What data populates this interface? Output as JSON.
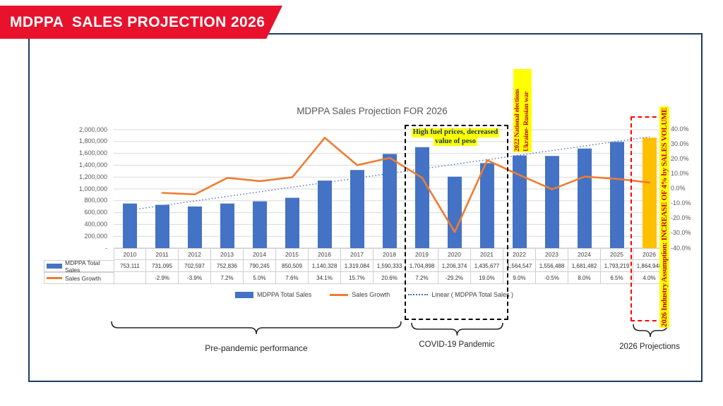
{
  "banner": {
    "title": "MDPPA  SALES PROJECTION 2026"
  },
  "chart": {
    "title": "MDPPA Sales Projection FOR 2026",
    "left_axis_ticks": [
      "2,000,000",
      "1,800,000",
      "1,600,000",
      "1,400,000",
      "1,200,000",
      "1,000,000",
      "800,000",
      "600,000",
      "400,000",
      "200,000",
      "-"
    ],
    "right_axis_ticks": [
      "40.0%",
      "30.0%",
      "20.0%",
      "10.0%",
      "0.0%",
      "-10.0%",
      "-20.0%",
      "-30.0%",
      "-40.0%"
    ]
  },
  "chart_data": {
    "type": "bar",
    "categories": [
      "2010",
      "2011",
      "2012",
      "2013",
      "2014",
      "2015",
      "2016",
      "2017",
      "2018",
      "2019",
      "2020",
      "2021",
      "2022",
      "2023",
      "2024",
      "2025",
      "2026"
    ],
    "series": [
      {
        "name": "MDPPA Total Sales",
        "type": "bar",
        "axis": "left",
        "values": [
          753111,
          731095,
          702597,
          752836,
          790245,
          850509,
          1140328,
          1319084,
          1590333,
          1704898,
          1206374,
          1435677,
          1564547,
          1556488,
          1681482,
          1793219,
          1864948
        ],
        "color": "#4472C4",
        "last_bar_color": "#FFC000"
      },
      {
        "name": "Sales Growth",
        "type": "line",
        "axis": "right",
        "values": [
          null,
          -2.9,
          -3.9,
          7.2,
          5.0,
          7.6,
          34.1,
          15.7,
          20.6,
          7.2,
          -29.2,
          19.0,
          9.0,
          -0.5,
          8.0,
          6.5,
          4.0
        ],
        "color": "#ED7D31"
      },
      {
        "name": "Linear ( MDPPA Total Sales )",
        "type": "linear-trendline",
        "axis": "left",
        "color": "#4472C4"
      }
    ],
    "left_axis": {
      "min": 0,
      "max": 2000000,
      "step": 200000
    },
    "right_axis": {
      "min": -40,
      "max": 40,
      "step": 10
    },
    "grid": true,
    "legend_position": "bottom"
  },
  "table": {
    "row_sales_label": "MDPPA Total Sales",
    "row_growth_label": "Sales Growth"
  },
  "legend": {
    "items": [
      {
        "label": "MDPPA Total Sales"
      },
      {
        "label": "Sales Growth"
      },
      {
        "label": "Linear ( MDPPA Total Sales )"
      }
    ]
  },
  "annotations": {
    "fuel_line1": "High fuel prices, decreased",
    "fuel_line2": "value of peso",
    "elections_line1": "2022 National elections",
    "elections_line2": "Ukraine- Russian war",
    "assumption": "2026 Industry Assumption:  INCREASE OF 4% by SALES VOLUME"
  },
  "sections": {
    "pre_pandemic": "Pre-pandemic performance",
    "covid": "COVID-19 Pandemic",
    "projections": "2026 Projections"
  },
  "colors": {
    "banner_red": "#E8122D",
    "frame_navy": "#1E3A5F",
    "bar_blue": "#4472C4",
    "bar_gold": "#FFC000",
    "line_orange": "#ED7D31",
    "trend_blue": "#4472C4",
    "highlight_yellow": "#FFFF00",
    "annotation_red": "#C00000",
    "annotation_navy": "#17375E"
  }
}
